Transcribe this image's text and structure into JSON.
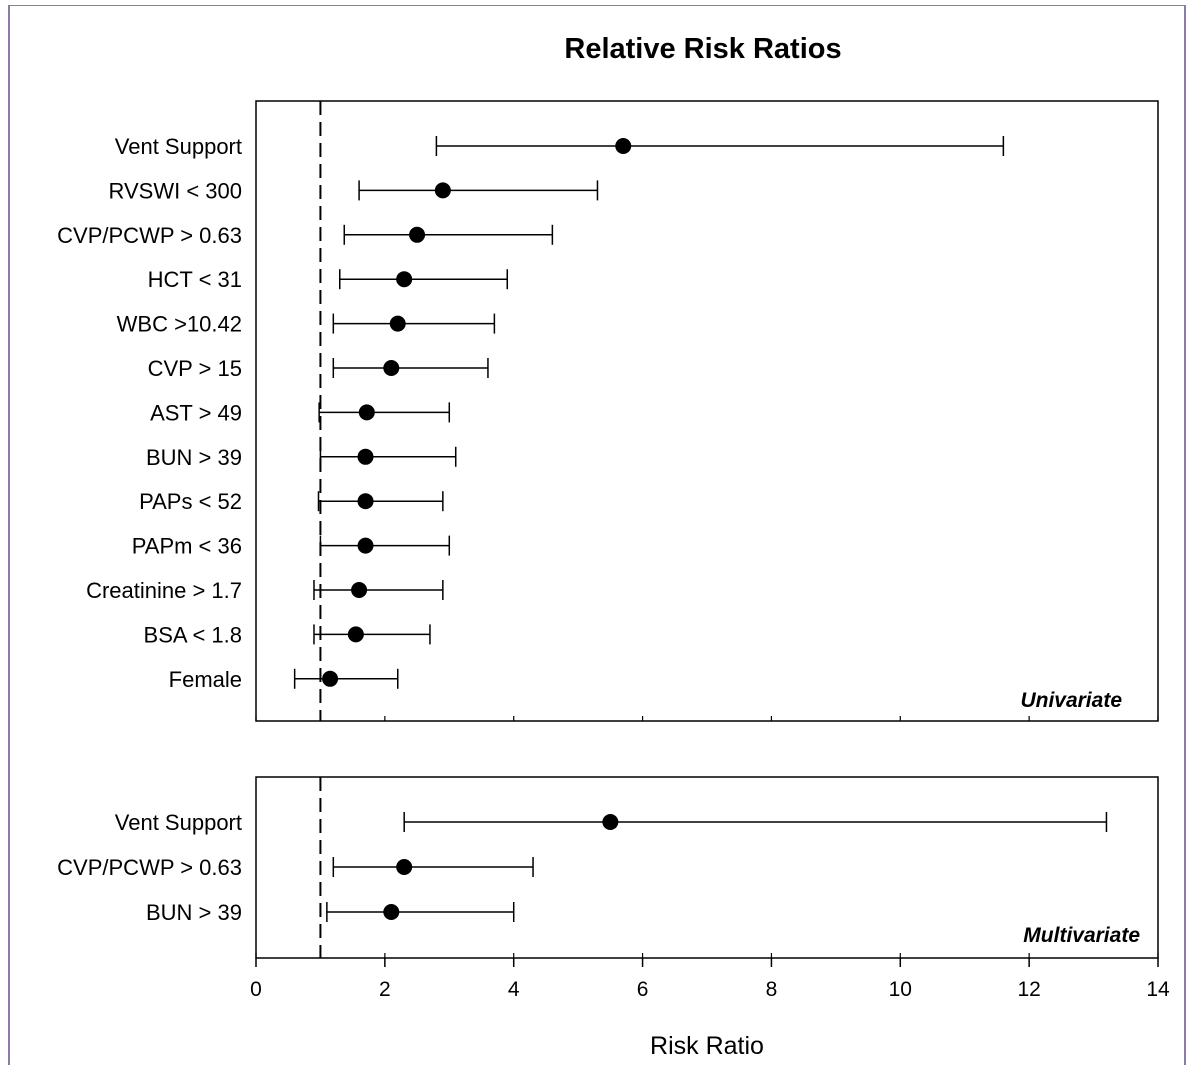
{
  "chart_data": {
    "type": "forest",
    "title": "Relative Risk Ratios",
    "xlabel": "Risk Ratio",
    "xlim": [
      0,
      14
    ],
    "xticks": [
      0,
      2,
      4,
      6,
      8,
      10,
      12,
      14
    ],
    "reference_line": 1,
    "panels": [
      {
        "label": "Univariate",
        "rows": [
          {
            "name": "Vent Support",
            "rr": 5.7,
            "lo": 2.8,
            "hi": 11.6
          },
          {
            "name": "RVSWI < 300",
            "rr": 2.9,
            "lo": 1.6,
            "hi": 5.3
          },
          {
            "name": "CVP/PCWP > 0.63",
            "rr": 2.5,
            "lo": 1.37,
            "hi": 4.6
          },
          {
            "name": "HCT < 31",
            "rr": 2.3,
            "lo": 1.3,
            "hi": 3.9
          },
          {
            "name": "WBC >10.42",
            "rr": 2.2,
            "lo": 1.2,
            "hi": 3.7
          },
          {
            "name": "CVP > 15",
            "rr": 2.1,
            "lo": 1.2,
            "hi": 3.6
          },
          {
            "name": "AST > 49",
            "rr": 1.72,
            "lo": 0.98,
            "hi": 3.0
          },
          {
            "name": "BUN > 39",
            "rr": 1.7,
            "lo": 1.0,
            "hi": 3.1
          },
          {
            "name": "PAPs < 52",
            "rr": 1.7,
            "lo": 0.97,
            "hi": 2.9
          },
          {
            "name": "PAPm < 36",
            "rr": 1.7,
            "lo": 1.0,
            "hi": 3.0
          },
          {
            "name": "Creatinine > 1.7",
            "rr": 1.6,
            "lo": 0.9,
            "hi": 2.9
          },
          {
            "name": "BSA < 1.8",
            "rr": 1.55,
            "lo": 0.9,
            "hi": 2.7
          },
          {
            "name": "Female",
            "rr": 1.15,
            "lo": 0.6,
            "hi": 2.2
          }
        ]
      },
      {
        "label": "Multivariate",
        "rows": [
          {
            "name": "Vent Support",
            "rr": 5.5,
            "lo": 2.3,
            "hi": 13.2
          },
          {
            "name": "CVP/PCWP > 0.63",
            "rr": 2.3,
            "lo": 1.2,
            "hi": 4.3
          },
          {
            "name": "BUN > 39",
            "rr": 2.1,
            "lo": 1.1,
            "hi": 4.0
          }
        ]
      }
    ]
  }
}
